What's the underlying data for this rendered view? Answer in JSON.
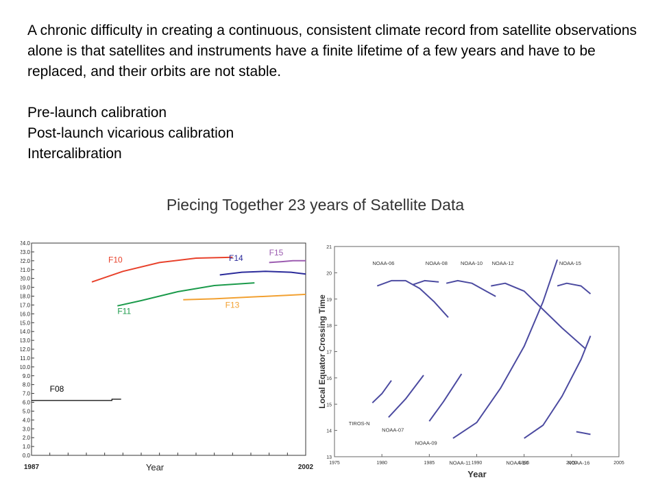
{
  "slide": {
    "paragraph": "A chronic difficulty in creating a continuous, consistent climate record from satellite observations alone is that satellites and instruments have a finite lifetime of a few years and have to be replaced, and their orbits are not stable.",
    "bullets": [
      "Pre-launch calibration",
      "Post-launch vicarious calibration",
      "Intercalibration"
    ],
    "figure_title": "Piecing Together 23 years of Satellite Data"
  },
  "chart_data": [
    {
      "type": "line",
      "title": "",
      "xlabel": "Year",
      "ylabel": "",
      "xlim": [
        1987,
        2002
      ],
      "ylim": [
        0,
        24
      ],
      "x_tick_labels": [
        "1987",
        "2002"
      ],
      "y_ticks": [
        0,
        1,
        2,
        3,
        4,
        5,
        6,
        7,
        8,
        9,
        10,
        11,
        12,
        13,
        14,
        15,
        16,
        17,
        18,
        19,
        20,
        21,
        22,
        23,
        24
      ],
      "y_tick_labels": [
        "0.0",
        "1.0",
        "2.0",
        "3.0",
        "4.0",
        "5.0",
        "6.0",
        "7.0",
        "8.0",
        "9.0",
        "10.0",
        "11.0",
        "12.0",
        "13.0",
        "14.0",
        "15.0",
        "16.0",
        "17.0",
        "18.0",
        "19.0",
        "20.0",
        "21.0",
        "22.0",
        "23.0",
        "24.0"
      ],
      "grid": false,
      "series": [
        {
          "name": "F08",
          "color": "#000000",
          "label_at": [
            1988,
            7.2
          ],
          "x": [
            1987.0,
            1991.4,
            1991.4,
            1991.9
          ],
          "y": [
            6.2,
            6.2,
            6.35,
            6.35
          ]
        },
        {
          "name": "F10",
          "color": "#e8402a",
          "label_at": [
            1991.2,
            21.8
          ],
          "x": [
            1990.3,
            1992,
            1994,
            1996,
            1998
          ],
          "y": [
            19.6,
            20.8,
            21.8,
            22.3,
            22.4
          ]
        },
        {
          "name": "F11",
          "color": "#1a9a4a",
          "label_at": [
            1991.7,
            16.0
          ],
          "x": [
            1991.7,
            1993,
            1995,
            1997,
            1999.2
          ],
          "y": [
            16.9,
            17.5,
            18.5,
            19.2,
            19.5
          ]
        },
        {
          "name": "F13",
          "color": "#f2a030",
          "label_at": [
            1997.6,
            16.7
          ],
          "x": [
            1995.3,
            1997,
            1999,
            2001,
            2002
          ],
          "y": [
            17.6,
            17.7,
            17.9,
            18.1,
            18.2
          ]
        },
        {
          "name": "F14",
          "color": "#2a2a9a",
          "label_at": [
            1997.8,
            22.0
          ],
          "x": [
            1997.3,
            1998.5,
            1999.8,
            2001.2,
            2002
          ],
          "y": [
            20.4,
            20.7,
            20.8,
            20.7,
            20.5
          ]
        },
        {
          "name": "F15",
          "color": "#9b5bb0",
          "label_at": [
            2000.0,
            22.6
          ],
          "x": [
            2000.0,
            2000.7,
            2001.3,
            2002
          ],
          "y": [
            21.8,
            21.9,
            22.0,
            22.0
          ]
        }
      ]
    },
    {
      "type": "line",
      "title": "",
      "xlabel": "Year",
      "ylabel": "Local Equator Crossing Time",
      "xlim": [
        1975,
        2005
      ],
      "ylim": [
        13,
        21
      ],
      "x_ticks": [
        1975,
        1980,
        1985,
        1990,
        1995,
        2000,
        2005
      ],
      "y_ticks": [
        13,
        14,
        15,
        16,
        17,
        18,
        19,
        20,
        21
      ],
      "grid": false,
      "series": [
        {
          "name": "NOAA-06",
          "label_at": [
            1979.0,
            20.3
          ],
          "x": [
            1979.5,
            1981,
            1982.5,
            1984,
            1985.5,
            1987
          ],
          "y": [
            19.5,
            19.7,
            19.7,
            19.4,
            18.9,
            18.3
          ]
        },
        {
          "name": "NOAA-08",
          "label_at": [
            1984.6,
            20.3
          ],
          "x": [
            1983.3,
            1984.5,
            1986
          ],
          "y": [
            19.55,
            19.7,
            19.65
          ]
        },
        {
          "name": "NOAA-10",
          "label_at": [
            1988.3,
            20.3
          ],
          "x": [
            1986.8,
            1988,
            1989.5,
            1991,
            1992
          ],
          "y": [
            19.6,
            19.7,
            19.6,
            19.3,
            19.1
          ]
        },
        {
          "name": "NOAA-12",
          "label_at": [
            1991.6,
            20.3
          ],
          "x": [
            1991.5,
            1993,
            1995,
            1997,
            1999,
            2001.5
          ],
          "y": [
            19.5,
            19.6,
            19.3,
            18.6,
            17.9,
            17.1
          ]
        },
        {
          "name": "NOAA-15",
          "label_at": [
            1998.7,
            20.3
          ],
          "x": [
            1998.5,
            1999.5,
            2001,
            2002
          ],
          "y": [
            19.5,
            19.6,
            19.5,
            19.2
          ]
        },
        {
          "name": "TIROS-N",
          "label_at": [
            1976.5,
            14.2
          ],
          "x": [
            1979,
            1980,
            1981
          ],
          "y": [
            15.05,
            15.4,
            15.9
          ]
        },
        {
          "name": "NOAA-07",
          "label_at": [
            1980.0,
            13.95
          ],
          "x": [
            1980.7,
            1982.5,
            1984.4
          ],
          "y": [
            14.5,
            15.2,
            16.1
          ]
        },
        {
          "name": "NOAA-09",
          "label_at": [
            1983.5,
            13.45
          ],
          "x": [
            1985,
            1986.5,
            1988.4
          ],
          "y": [
            14.35,
            15.1,
            16.15
          ]
        },
        {
          "name": "NOAA-11",
          "label_at": [
            1987.1,
            12.7
          ],
          "x": [
            1987.5,
            1990,
            1992.5,
            1995,
            1997,
            1998.5
          ],
          "y": [
            13.7,
            14.3,
            15.6,
            17.2,
            18.9,
            20.5
          ]
        },
        {
          "name": "NOAA-14",
          "label_at": [
            1993.1,
            12.7
          ],
          "x": [
            1995,
            1997,
            1999,
            2001,
            2002
          ],
          "y": [
            13.7,
            14.2,
            15.3,
            16.7,
            17.6
          ]
        },
        {
          "name": "NOAA-16",
          "label_at": [
            1999.6,
            12.7
          ],
          "x": [
            2000.5,
            2001.3,
            2002
          ],
          "y": [
            13.95,
            13.9,
            13.85
          ]
        }
      ]
    }
  ]
}
